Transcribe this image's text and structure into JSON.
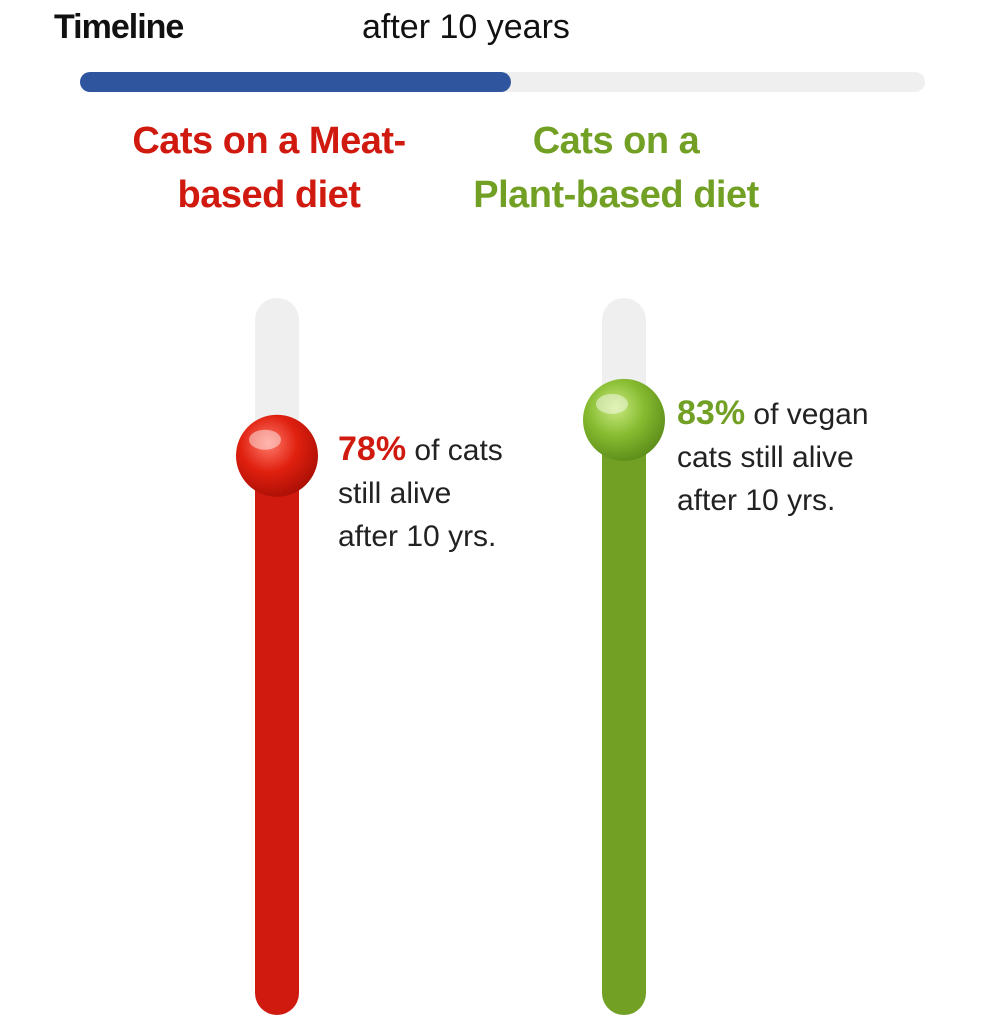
{
  "timeline": {
    "label": "Timeline",
    "caption": "after 10 years",
    "progress": 51
  },
  "chart_data": {
    "type": "gauge",
    "ylim": [
      0,
      100
    ],
    "series": [
      {
        "name": [
          "Cats on a Meat-",
          "based diet"
        ],
        "color": "#d0190f",
        "values": [
          78
        ],
        "value_labels": [
          "78%"
        ],
        "caption": [
          "of cats",
          "still alive",
          "after 10 yrs."
        ]
      },
      {
        "name": [
          "Cats on a",
          "Plant-based diet"
        ],
        "color": "#72a024",
        "values": [
          83
        ],
        "value_labels": [
          "83%"
        ],
        "caption": [
          "of vegan",
          "cats still alive",
          "after 10 yrs."
        ]
      }
    ]
  }
}
